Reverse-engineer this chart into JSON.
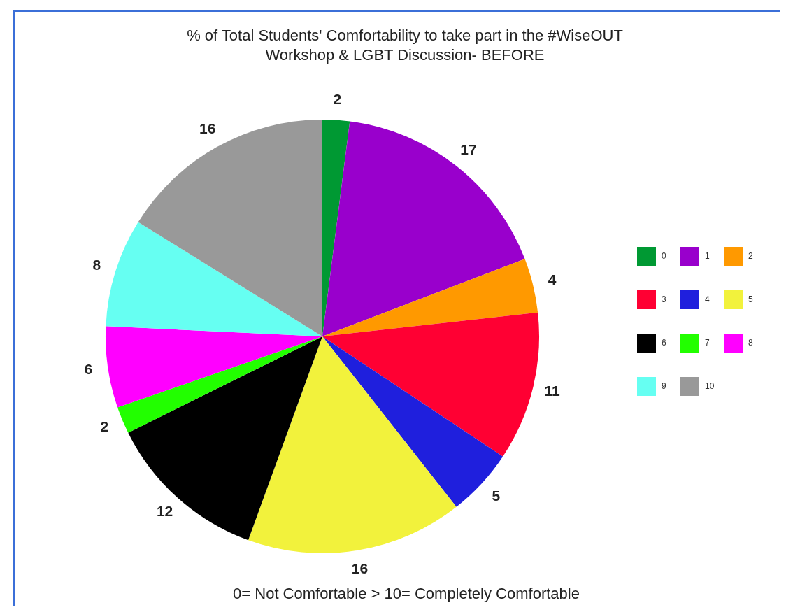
{
  "chart_data": {
    "type": "pie",
    "title": "% of Total Students' Comfortability to take part in the #WiseOUT\nWorkshop & LGBT Discussion- BEFORE",
    "categories": [
      "0",
      "1",
      "2",
      "3",
      "4",
      "5",
      "6",
      "7",
      "8",
      "9",
      "10"
    ],
    "values": [
      2,
      17,
      4,
      11,
      5,
      16,
      12,
      2,
      6,
      8,
      16
    ],
    "colors": [
      "#009933",
      "#9900cc",
      "#ff9900",
      "#ff0033",
      "#1f1fdd",
      "#f2f23c",
      "#000000",
      "#22ff00",
      "#ff00ff",
      "#66fff2",
      "#999999"
    ],
    "data_labels": true,
    "legend": "right",
    "annotations": [
      "0= Not Comfortable > 10= Completely Comfortable"
    ]
  }
}
